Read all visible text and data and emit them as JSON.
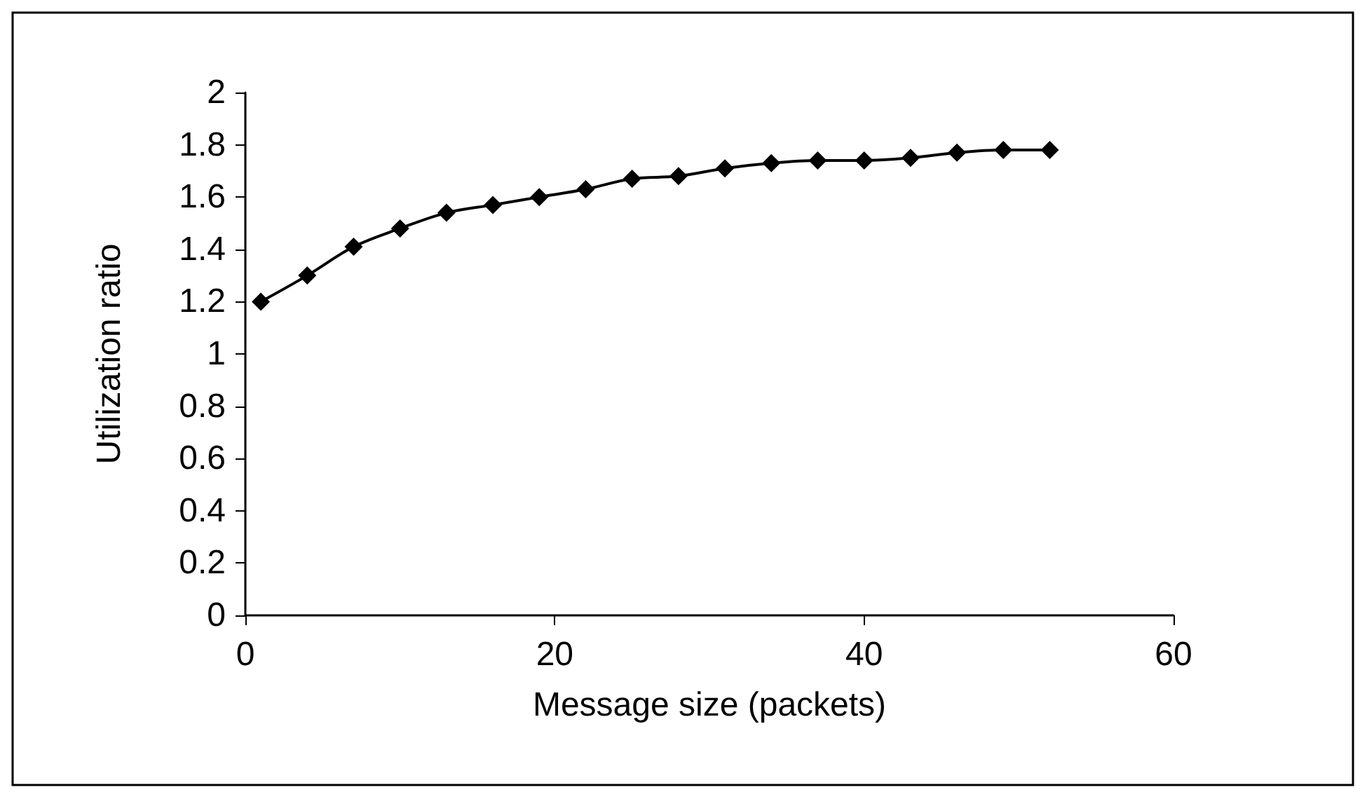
{
  "chart_data": {
    "type": "line",
    "xlabel": "Message size (packets)",
    "ylabel": "Utilization ratio",
    "x": [
      1,
      4,
      7,
      10,
      13,
      16,
      19,
      22,
      25,
      28,
      31,
      34,
      37,
      40,
      43,
      46,
      49,
      52
    ],
    "series": [
      {
        "color": "#000000",
        "values": [
          1.2,
          1.3,
          1.41,
          1.48,
          1.54,
          1.57,
          1.6,
          1.63,
          1.67,
          1.68,
          1.71,
          1.73,
          1.74,
          1.74,
          1.75,
          1.77,
          1.78,
          1.78
        ]
      }
    ],
    "xlim": [
      0,
      60
    ],
    "xticks": [
      0,
      20,
      40,
      60
    ],
    "ylim": [
      0,
      2
    ],
    "yticks": [
      0,
      0.2,
      0.4,
      0.6,
      0.8,
      1,
      1.2,
      1.4,
      1.6,
      1.8,
      2
    ],
    "grid": false,
    "marker": "diamond",
    "line_style": "solid"
  }
}
